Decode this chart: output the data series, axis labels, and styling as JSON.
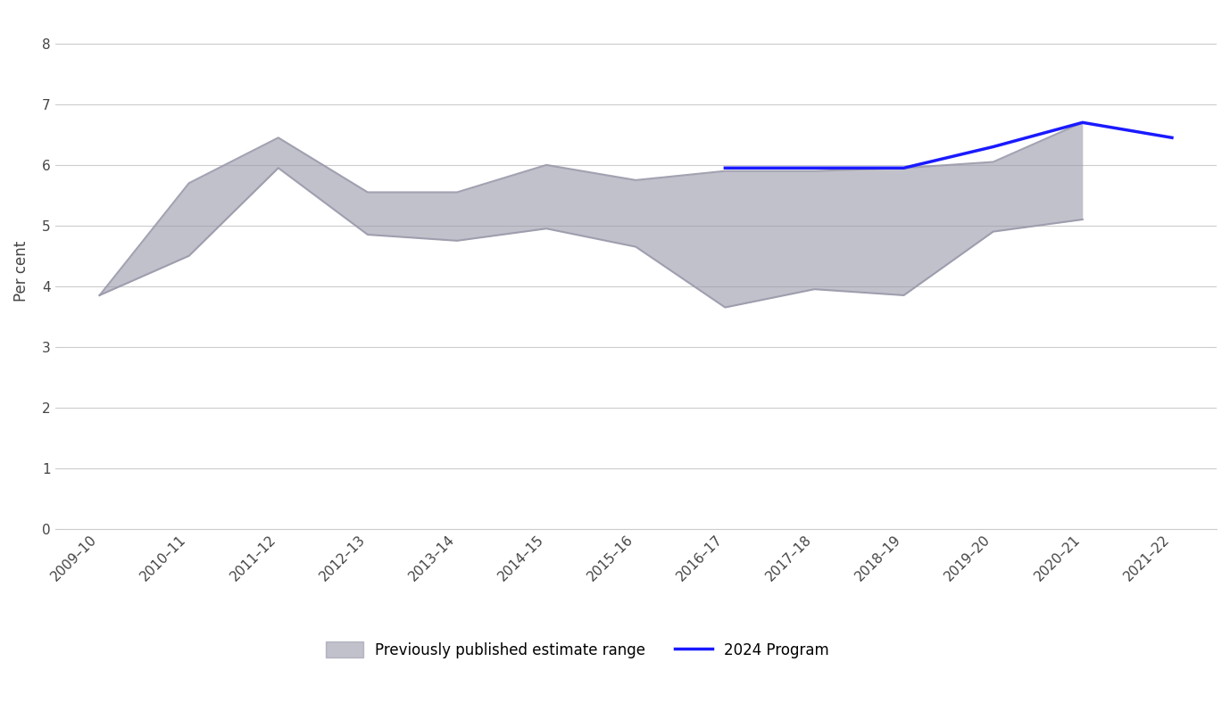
{
  "x_labels": [
    "2009–10",
    "2010–11",
    "2011–12",
    "2012–13",
    "2013–14",
    "2014–15",
    "2015–16",
    "2016–17",
    "2017–18",
    "2018–19",
    "2019–20",
    "2020–21",
    "2021–22"
  ],
  "upper_bound": [
    3.85,
    5.7,
    6.45,
    5.55,
    5.55,
    6.0,
    5.75,
    5.9,
    5.9,
    5.95,
    6.05,
    6.7
  ],
  "lower_bound": [
    3.85,
    4.5,
    5.95,
    4.85,
    4.75,
    4.95,
    4.65,
    3.65,
    3.95,
    3.85,
    4.9,
    5.1
  ],
  "blue_line_x_indices": [
    7,
    8,
    9,
    10,
    11,
    12
  ],
  "blue_line": [
    5.95,
    5.95,
    5.95,
    6.3,
    6.7,
    6.45
  ],
  "ylabel": "Per cent",
  "ylim": [
    0,
    8.5
  ],
  "yticks": [
    0,
    1,
    2,
    3,
    4,
    5,
    6,
    7,
    8
  ],
  "fill_color": "#9999aa",
  "fill_alpha": 0.6,
  "blue_color": "#1a1aff",
  "background_color": "#ffffff",
  "grid_color": "#cccccc",
  "legend_shade_label": "Previously published estimate range",
  "legend_blue_label": "2024 Program"
}
